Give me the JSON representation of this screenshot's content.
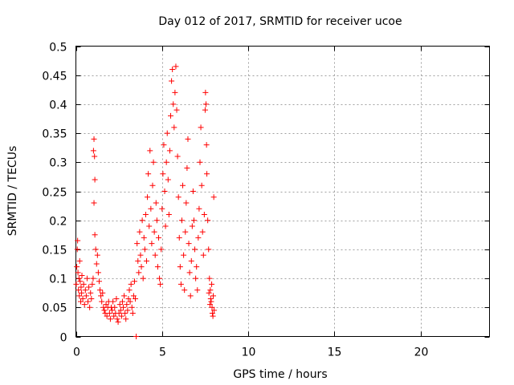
{
  "chart_data": {
    "type": "scatter",
    "title": "Day 012 of 2017, SRMTID for receiver ucoe",
    "xlabel": "GPS time / hours",
    "ylabel": "SRMTID / TECUs",
    "xlim": [
      0,
      24
    ],
    "ylim": [
      0,
      0.5
    ],
    "x_ticks": [
      0,
      5,
      10,
      15,
      20
    ],
    "x_tick_labels": [
      "0",
      "5",
      "10",
      "15",
      "20"
    ],
    "y_ticks": [
      0,
      0.05,
      0.1,
      0.15,
      0.2,
      0.25,
      0.3,
      0.35,
      0.4,
      0.45,
      0.5
    ],
    "y_tick_labels": [
      "0",
      "0.05",
      "0.1",
      "0.15",
      "0.2",
      "0.25",
      "0.3",
      "0.35",
      "0.4",
      "0.45",
      "0.5"
    ],
    "grid": true,
    "marker": "+",
    "color": "#ff0000",
    "series": [
      {
        "name": "ucoe",
        "points": [
          [
            0.02,
            0.09
          ],
          [
            0.05,
            0.12
          ],
          [
            0.08,
            0.15
          ],
          [
            0.1,
            0.165
          ],
          [
            0.12,
            0.11
          ],
          [
            0.15,
            0.08
          ],
          [
            0.18,
            0.1
          ],
          [
            0.2,
            0.07
          ],
          [
            0.22,
            0.13
          ],
          [
            0.25,
            0.095
          ],
          [
            0.28,
            0.06
          ],
          [
            0.3,
            0.085
          ],
          [
            0.33,
            0.075
          ],
          [
            0.35,
            0.105
          ],
          [
            0.4,
            0.065
          ],
          [
            0.45,
            0.09
          ],
          [
            0.5,
            0.055
          ],
          [
            0.55,
            0.08
          ],
          [
            0.6,
            0.07
          ],
          [
            0.65,
            0.1
          ],
          [
            0.7,
            0.06
          ],
          [
            0.75,
            0.085
          ],
          [
            0.8,
            0.05
          ],
          [
            0.85,
            0.075
          ],
          [
            0.9,
            0.065
          ],
          [
            0.95,
            0.09
          ],
          [
            1.0,
            0.1
          ],
          [
            1.02,
            0.32
          ],
          [
            1.05,
            0.34
          ],
          [
            1.08,
            0.31
          ],
          [
            1.1,
            0.27
          ],
          [
            1.05,
            0.23
          ],
          [
            1.1,
            0.175
          ],
          [
            1.15,
            0.15
          ],
          [
            1.2,
            0.125
          ],
          [
            1.25,
            0.14
          ],
          [
            1.3,
            0.11
          ],
          [
            1.35,
            0.095
          ],
          [
            1.4,
            0.08
          ],
          [
            1.45,
            0.07
          ],
          [
            1.5,
            0.06
          ],
          [
            1.55,
            0.075
          ],
          [
            1.6,
            0.05
          ],
          [
            1.65,
            0.045
          ],
          [
            1.7,
            0.04
          ],
          [
            1.75,
            0.055
          ],
          [
            1.8,
            0.035
          ],
          [
            1.85,
            0.05
          ],
          [
            1.9,
            0.06
          ],
          [
            1.95,
            0.04
          ],
          [
            2.0,
            0.03
          ],
          [
            2.05,
            0.05
          ],
          [
            2.1,
            0.045
          ],
          [
            2.15,
            0.06
          ],
          [
            2.2,
            0.035
          ],
          [
            2.25,
            0.05
          ],
          [
            2.3,
            0.04
          ],
          [
            2.35,
            0.065
          ],
          [
            2.4,
            0.03
          ],
          [
            2.45,
            0.025
          ],
          [
            2.5,
            0.04
          ],
          [
            2.55,
            0.055
          ],
          [
            2.6,
            0.045
          ],
          [
            2.65,
            0.035
          ],
          [
            2.7,
            0.06
          ],
          [
            2.75,
            0.05
          ],
          [
            2.8,
            0.07
          ],
          [
            2.85,
            0.04
          ],
          [
            2.9,
            0.03
          ],
          [
            2.95,
            0.055
          ],
          [
            3.0,
            0.045
          ],
          [
            3.05,
            0.065
          ],
          [
            3.1,
            0.08
          ],
          [
            3.15,
            0.06
          ],
          [
            3.2,
            0.09
          ],
          [
            3.25,
            0.05
          ],
          [
            3.3,
            0.04
          ],
          [
            3.35,
            0.07
          ],
          [
            3.4,
            0.095
          ],
          [
            3.45,
            0.065
          ],
          [
            3.5,
            0.0
          ],
          [
            3.55,
            0.16
          ],
          [
            3.6,
            0.13
          ],
          [
            3.65,
            0.11
          ],
          [
            3.7,
            0.18
          ],
          [
            3.75,
            0.14
          ],
          [
            3.8,
            0.12
          ],
          [
            3.85,
            0.2
          ],
          [
            3.9,
            0.1
          ],
          [
            3.95,
            0.17
          ],
          [
            4.0,
            0.15
          ],
          [
            4.05,
            0.21
          ],
          [
            4.1,
            0.13
          ],
          [
            4.15,
            0.24
          ],
          [
            4.2,
            0.28
          ],
          [
            4.25,
            0.19
          ],
          [
            4.3,
            0.32
          ],
          [
            4.35,
            0.22
          ],
          [
            4.4,
            0.16
          ],
          [
            4.45,
            0.26
          ],
          [
            4.5,
            0.3
          ],
          [
            4.55,
            0.18
          ],
          [
            4.6,
            0.14
          ],
          [
            4.65,
            0.23
          ],
          [
            4.7,
            0.2
          ],
          [
            4.75,
            0.12
          ],
          [
            4.8,
            0.17
          ],
          [
            4.85,
            0.1
          ],
          [
            4.9,
            0.09
          ],
          [
            4.95,
            0.15
          ],
          [
            5.0,
            0.22
          ],
          [
            5.05,
            0.28
          ],
          [
            5.1,
            0.33
          ],
          [
            5.15,
            0.25
          ],
          [
            5.2,
            0.19
          ],
          [
            5.25,
            0.3
          ],
          [
            5.3,
            0.35
          ],
          [
            5.35,
            0.27
          ],
          [
            5.4,
            0.21
          ],
          [
            5.45,
            0.32
          ],
          [
            5.5,
            0.38
          ],
          [
            5.55,
            0.44
          ],
          [
            5.6,
            0.46
          ],
          [
            5.65,
            0.4
          ],
          [
            5.7,
            0.36
          ],
          [
            5.75,
            0.42
          ],
          [
            5.8,
            0.465
          ],
          [
            5.85,
            0.39
          ],
          [
            5.9,
            0.31
          ],
          [
            5.95,
            0.24
          ],
          [
            6.0,
            0.17
          ],
          [
            6.05,
            0.12
          ],
          [
            6.1,
            0.09
          ],
          [
            6.15,
            0.2
          ],
          [
            6.2,
            0.26
          ],
          [
            6.25,
            0.14
          ],
          [
            6.3,
            0.08
          ],
          [
            6.35,
            0.18
          ],
          [
            6.4,
            0.23
          ],
          [
            6.45,
            0.29
          ],
          [
            6.5,
            0.34
          ],
          [
            6.55,
            0.16
          ],
          [
            6.6,
            0.11
          ],
          [
            6.65,
            0.07
          ],
          [
            6.7,
            0.13
          ],
          [
            6.75,
            0.19
          ],
          [
            6.8,
            0.25
          ],
          [
            6.85,
            0.2
          ],
          [
            6.9,
            0.15
          ],
          [
            6.95,
            0.1
          ],
          [
            7.0,
            0.12
          ],
          [
            7.05,
            0.08
          ],
          [
            7.1,
            0.17
          ],
          [
            7.15,
            0.22
          ],
          [
            7.2,
            0.3
          ],
          [
            7.25,
            0.36
          ],
          [
            7.3,
            0.26
          ],
          [
            7.35,
            0.18
          ],
          [
            7.4,
            0.14
          ],
          [
            7.45,
            0.21
          ],
          [
            7.5,
            0.39
          ],
          [
            7.52,
            0.42
          ],
          [
            7.55,
            0.4
          ],
          [
            7.58,
            0.33
          ],
          [
            7.6,
            0.28
          ],
          [
            7.65,
            0.2
          ],
          [
            7.7,
            0.15
          ],
          [
            7.75,
            0.1
          ],
          [
            7.8,
            0.08
          ],
          [
            7.85,
            0.06
          ],
          [
            7.9,
            0.05
          ],
          [
            7.92,
            0.04
          ],
          [
            7.95,
            0.035
          ],
          [
            7.97,
            0.07
          ],
          [
            8.0,
            0.24
          ],
          [
            8.02,
            0.045
          ],
          [
            7.88,
            0.09
          ],
          [
            7.82,
            0.065
          ],
          [
            7.78,
            0.055
          ],
          [
            7.72,
            0.075
          ]
        ]
      }
    ]
  }
}
